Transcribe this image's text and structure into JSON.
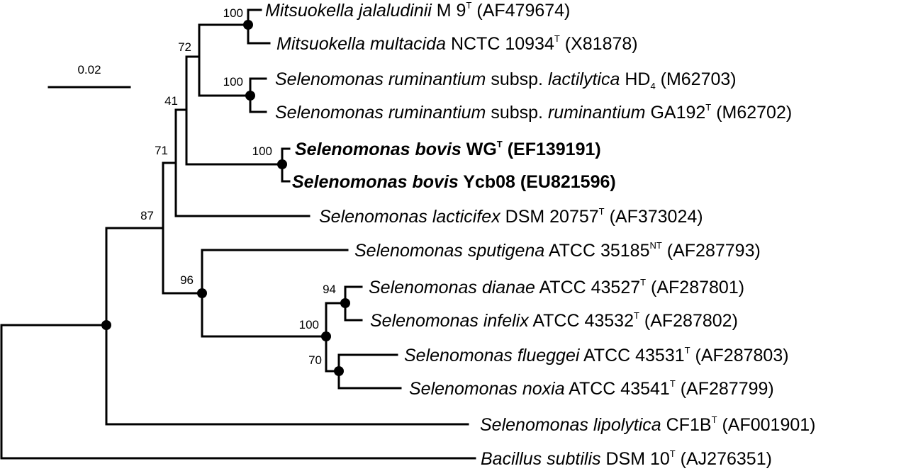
{
  "scale_bar": {
    "label": "0.02"
  },
  "leaves": [
    {
      "id": "mj",
      "parts": [
        {
          "t": "Mitsuokella jalaludinii",
          "i": true
        },
        {
          "t": " M 9"
        },
        {
          "t": "T",
          "sup": true
        },
        {
          "t": " (AF479674)"
        }
      ]
    },
    {
      "id": "mm",
      "parts": [
        {
          "t": "Mitsuokella multacida",
          "i": true
        },
        {
          "t": " NCTC 10934"
        },
        {
          "t": "T",
          "sup": true
        },
        {
          "t": " (X81878)"
        }
      ]
    },
    {
      "id": "srl",
      "parts": [
        {
          "t": "Selenomonas ruminantium",
          "i": true
        },
        {
          "t": " subsp. "
        },
        {
          "t": "lactilytica",
          "i": true
        },
        {
          "t": " HD"
        },
        {
          "t": "4",
          "sub": true
        },
        {
          "t": " (M62703)"
        }
      ]
    },
    {
      "id": "srr",
      "parts": [
        {
          "t": "Selenomonas ruminantium",
          "i": true
        },
        {
          "t": " subsp. "
        },
        {
          "t": "ruminantium",
          "i": true
        },
        {
          "t": " GA192"
        },
        {
          "t": "T",
          "sup": true
        },
        {
          "t": " (M62702)"
        }
      ]
    },
    {
      "id": "sbw",
      "bold": true,
      "parts": [
        {
          "t": "Selenomonas bovis",
          "i": true
        },
        {
          "t": " WG"
        },
        {
          "t": "T",
          "sup": true
        },
        {
          "t": " (EF139191)"
        }
      ]
    },
    {
      "id": "sby",
      "bold": true,
      "parts": [
        {
          "t": "Selenomonas bovis",
          "i": true
        },
        {
          "t": " Ycb08 (EU821596)"
        }
      ]
    },
    {
      "id": "sla",
      "parts": [
        {
          "t": "Selenomonas lacticifex",
          "i": true
        },
        {
          "t": " DSM 20757"
        },
        {
          "t": "T",
          "sup": true
        },
        {
          "t": " (AF373024)"
        }
      ]
    },
    {
      "id": "ssp",
      "parts": [
        {
          "t": "Selenomonas sputigena",
          "i": true
        },
        {
          "t": " ATCC 35185"
        },
        {
          "t": "NT",
          "sup": true
        },
        {
          "t": " (AF287793)"
        }
      ]
    },
    {
      "id": "sdi",
      "parts": [
        {
          "t": "Selenomonas dianae",
          "i": true
        },
        {
          "t": " ATCC 43527"
        },
        {
          "t": "T",
          "sup": true
        },
        {
          "t": " (AF287801)"
        }
      ]
    },
    {
      "id": "sin",
      "parts": [
        {
          "t": "Selenomonas infelix",
          "i": true
        },
        {
          "t": " ATCC 43532"
        },
        {
          "t": "T",
          "sup": true
        },
        {
          "t": " (AF287802)"
        }
      ]
    },
    {
      "id": "sfl",
      "parts": [
        {
          "t": "Selenomonas flueggei",
          "i": true
        },
        {
          "t": " ATCC 43531"
        },
        {
          "t": "T",
          "sup": true
        },
        {
          "t": " (AF287803)"
        }
      ]
    },
    {
      "id": "sno",
      "parts": [
        {
          "t": "Selenomonas noxia",
          "i": true
        },
        {
          "t": " ATCC 43541"
        },
        {
          "t": "T",
          "sup": true
        },
        {
          "t": " (AF287799)"
        }
      ]
    },
    {
      "id": "sli",
      "parts": [
        {
          "t": "Selenomonas lipolytica",
          "i": true
        },
        {
          "t": " CF1B"
        },
        {
          "t": "T",
          "sup": true
        },
        {
          "t": " (AF001901)"
        }
      ]
    },
    {
      "id": "bsu",
      "parts": [
        {
          "t": "Bacillus subtilis",
          "i": true
        },
        {
          "t": " DSM 10"
        },
        {
          "t": "T",
          "sup": true
        },
        {
          "t": " (AJ276351)"
        }
      ]
    }
  ],
  "bootstrap_values": {
    "mitsuokella": "100",
    "mitsuokella_ruminantium": "72",
    "ruminantium": "100",
    "upper_clade": "41",
    "bovis": "100",
    "with_lacticifex": "71",
    "selenomonas_core": "87",
    "sputigena_clade": "96",
    "dianae_infelix": "94",
    "oral_clade": "100",
    "flueggei_noxia": "70"
  }
}
